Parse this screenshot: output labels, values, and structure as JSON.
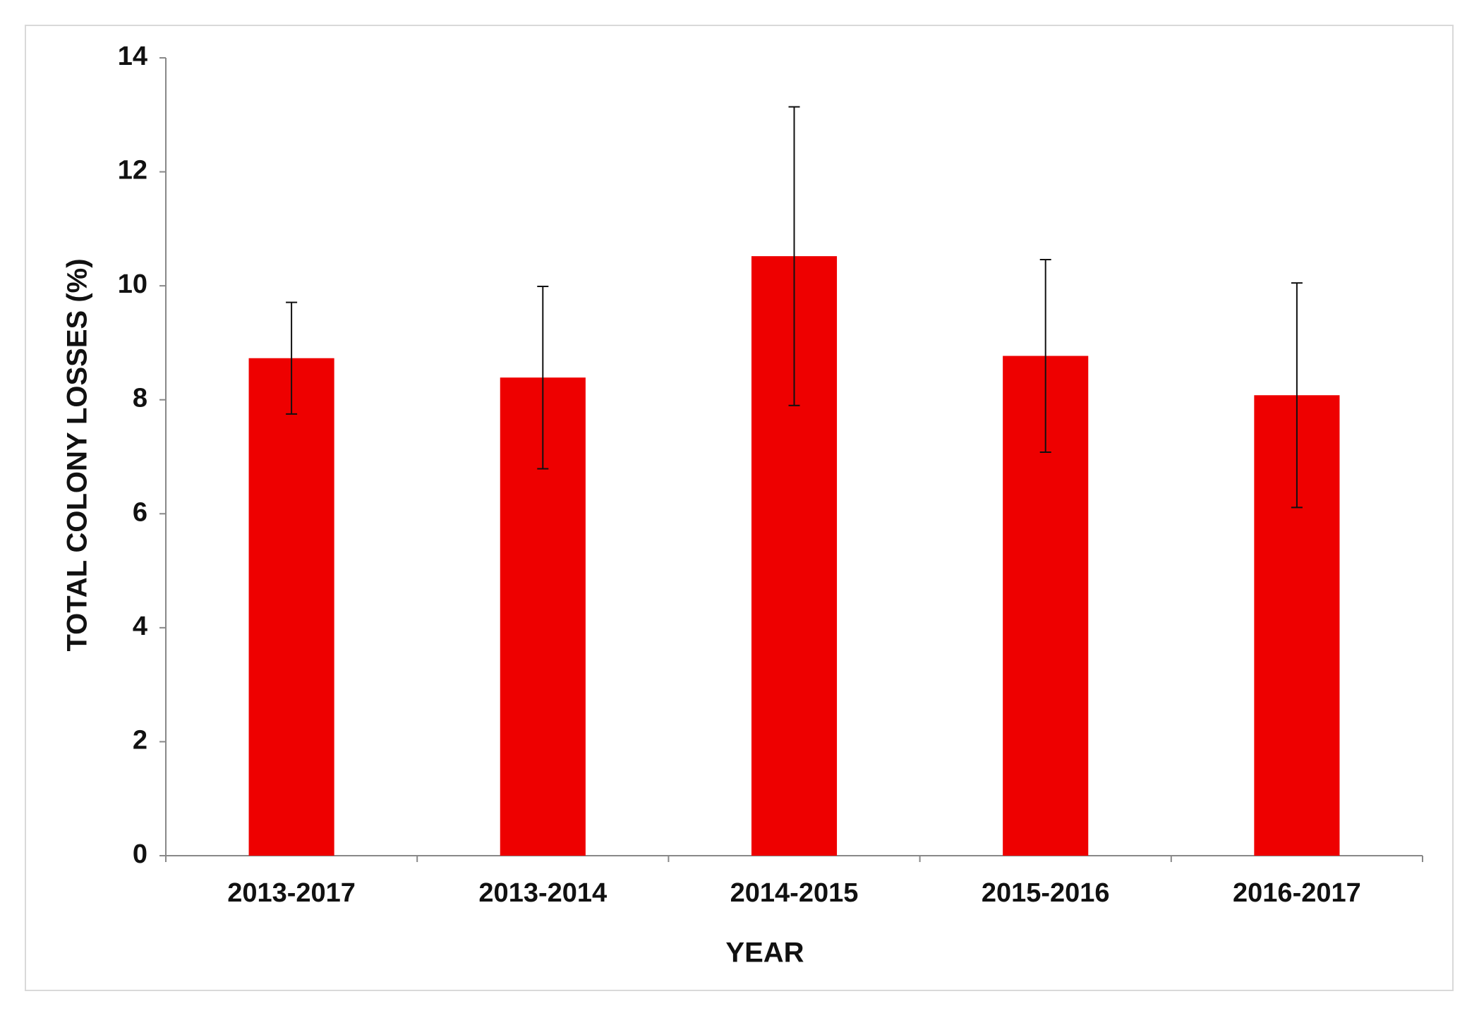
{
  "chart_data": {
    "type": "bar",
    "x_label": "YEAR",
    "y_label": "TOTAL COLONY LOSSES (%)",
    "categories": [
      "2013-2017",
      "2013-2014",
      "2014-2015",
      "2015-2016",
      "2016-2017"
    ],
    "values": [
      8.73,
      8.39,
      10.52,
      8.77,
      8.08
    ],
    "errors": [
      0.98,
      1.6,
      2.62,
      1.69,
      1.97
    ],
    "color": "#ee0000",
    "ylim": [
      0,
      14
    ],
    "yticks": [
      0,
      2,
      4,
      6,
      8,
      10,
      12,
      14
    ],
    "grid": false
  }
}
